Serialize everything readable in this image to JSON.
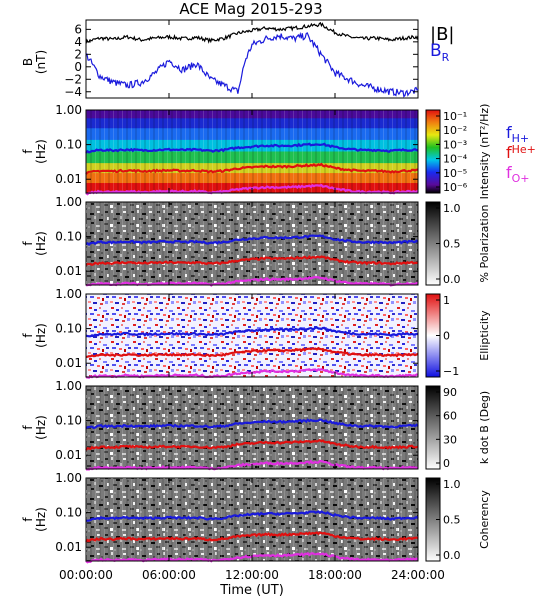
{
  "title": "ACE Mag 2015-293",
  "colors": {
    "B_total": "#000000",
    "B_R": "#1a1adc",
    "f_H": "#1a1adc",
    "f_He": "#e01010",
    "f_O": "#e030e0"
  },
  "x_axis": {
    "label": "Time (UT)",
    "range_hours": [
      0,
      24
    ],
    "ticks": [
      "00:00:00",
      "06:00:00",
      "12:00:00",
      "18:00:00",
      "24:00:00"
    ]
  },
  "panel_b": {
    "ylabel_main": "B",
    "ylabel_unit": "(nT)",
    "ylim": [
      -5,
      7.5
    ],
    "ticks": [
      "6",
      "4",
      "2",
      "0",
      "−2",
      "−4"
    ],
    "legend_total": "|B|",
    "legend_r_main": "B",
    "legend_r_sub": "R"
  },
  "freq_axis": {
    "ylabel_main": "f",
    "ylabel_unit": "(Hz)",
    "ticks": [
      "1.00",
      "0.10",
      "0.01"
    ]
  },
  "panels": [
    {
      "id": "intensity",
      "colorbar_label": "Intensity (nT²/Hz)",
      "colorbar_ticks": [
        "10⁻¹",
        "10⁻²",
        "10⁻³",
        "10⁻⁴",
        "10⁻⁵",
        "10⁻⁶"
      ],
      "scale": "rainbow"
    },
    {
      "id": "polarization",
      "colorbar_label": "% Polarization",
      "colorbar_ticks": [
        "1.0",
        "0.5",
        "0.0"
      ],
      "scale": "gray"
    },
    {
      "id": "ellipticity",
      "colorbar_label": "Ellipticity",
      "colorbar_ticks": [
        "1",
        "0",
        "−1"
      ],
      "scale": "bwr"
    },
    {
      "id": "kdotb",
      "colorbar_label": "k dot B (Deg)",
      "colorbar_ticks": [
        "90",
        "60",
        "30",
        "0"
      ],
      "scale": "gray"
    },
    {
      "id": "coherency",
      "colorbar_label": "Coherency",
      "colorbar_ticks": [
        "1.0",
        "0.5",
        "0.0"
      ],
      "scale": "gray"
    }
  ],
  "gyro_legend": [
    {
      "main": "f",
      "sub": "H+"
    },
    {
      "main": "f",
      "sub": "He+"
    },
    {
      "main": "f",
      "sub": "O+"
    }
  ],
  "chart_data": {
    "type": "line",
    "title": "ACE Mag 2015-293",
    "xlabel": "Time (UT)",
    "xlim_hours": [
      0,
      24
    ],
    "b_field": {
      "ylabel": "B (nT)",
      "ylim": [
        -5,
        7.5
      ],
      "series": [
        {
          "name": "|B|",
          "t_hours": [
            0,
            1,
            2,
            3,
            4,
            5,
            6,
            7,
            8,
            9,
            10,
            11,
            12,
            13,
            14,
            15,
            16,
            17,
            18,
            19,
            20,
            21,
            22,
            23,
            24
          ],
          "values": [
            4.0,
            4.6,
            4.4,
            4.8,
            4.3,
            4.6,
            4.8,
            4.5,
            4.7,
            4.2,
            4.6,
            5.4,
            5.8,
            6.2,
            6.0,
            6.2,
            6.5,
            6.8,
            5.5,
            4.8,
            4.5,
            4.6,
            4.3,
            4.6,
            4.8
          ]
        },
        {
          "name": "B_R",
          "t_hours": [
            0,
            1,
            2,
            3,
            4,
            5,
            6,
            7,
            8,
            9,
            10,
            11,
            11.5,
            12,
            13,
            14,
            15,
            16,
            17,
            17.5,
            18,
            19,
            20,
            21,
            22,
            23,
            24
          ],
          "values": [
            2.0,
            -1.5,
            -2.5,
            -3.0,
            -2.5,
            -1.0,
            1.0,
            -0.5,
            0.5,
            -2.0,
            -3.0,
            -4.0,
            1.0,
            3.5,
            4.5,
            5.0,
            4.5,
            5.0,
            2.0,
            0.5,
            -1.0,
            -2.0,
            -3.0,
            -3.5,
            -4.0,
            -4.2,
            -3.8
          ]
        }
      ]
    },
    "gyrofrequencies": {
      "ylabel": "f (Hz)",
      "yscale": "log",
      "ylim": [
        0.004,
        1.0
      ],
      "t_hours": [
        0,
        1,
        2,
        3,
        4,
        5,
        6,
        7,
        8,
        9,
        10,
        11,
        12,
        13,
        14,
        15,
        16,
        17,
        18,
        19,
        20,
        21,
        22,
        23,
        24
      ],
      "series": [
        {
          "name": "f_H+",
          "values": [
            0.06,
            0.07,
            0.068,
            0.072,
            0.068,
            0.07,
            0.072,
            0.07,
            0.071,
            0.066,
            0.07,
            0.082,
            0.088,
            0.094,
            0.092,
            0.095,
            0.1,
            0.104,
            0.084,
            0.074,
            0.069,
            0.07,
            0.066,
            0.07,
            0.072
          ]
        },
        {
          "name": "f_He+",
          "values": [
            0.015,
            0.0175,
            0.017,
            0.018,
            0.017,
            0.0175,
            0.018,
            0.0175,
            0.0178,
            0.0165,
            0.0175,
            0.0205,
            0.022,
            0.0235,
            0.023,
            0.0238,
            0.025,
            0.026,
            0.021,
            0.0185,
            0.0172,
            0.0175,
            0.0165,
            0.0175,
            0.018
          ]
        },
        {
          "name": "f_O+",
          "values": [
            0.0038,
            0.0044,
            0.0042,
            0.0045,
            0.0042,
            0.0044,
            0.0045,
            0.0044,
            0.0045,
            0.0041,
            0.0044,
            0.0051,
            0.0055,
            0.0059,
            0.0058,
            0.0059,
            0.0063,
            0.0065,
            0.0053,
            0.0046,
            0.0043,
            0.0044,
            0.0041,
            0.0044,
            0.0045
          ]
        }
      ]
    }
  }
}
